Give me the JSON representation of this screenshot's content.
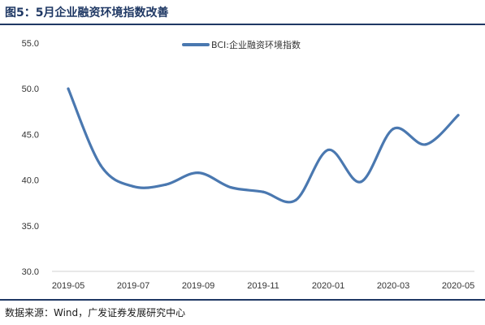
{
  "figure": {
    "title": "图5：5月企业融资环境指数改善",
    "source": "数据来源：Wind，广发证券发展研究中心"
  },
  "colors": {
    "series": "#4a78b0",
    "accent": "#1f3864"
  },
  "chart_data": {
    "type": "line",
    "title": "",
    "xlabel": "",
    "ylabel": "",
    "ylim": [
      30.0,
      55.0
    ],
    "yticks": [
      "30.0",
      "35.0",
      "40.0",
      "45.0",
      "50.0",
      "55.0"
    ],
    "xtick_labels": [
      "2019-05",
      "2019-07",
      "2019-09",
      "2019-11",
      "2020-01",
      "2020-03",
      "2020-05"
    ],
    "x": [
      "2019-05",
      "2019-06",
      "2019-07",
      "2019-08",
      "2019-09",
      "2019-10",
      "2019-11",
      "2019-12",
      "2020-01",
      "2020-02",
      "2020-03",
      "2020-04",
      "2020-05"
    ],
    "grid": false,
    "legend": "top-center",
    "series": [
      {
        "name": "BCI:企业融资环境指数",
        "values": [
          50.0,
          41.6,
          39.3,
          39.5,
          40.8,
          39.2,
          38.7,
          37.8,
          43.3,
          39.8,
          45.6,
          43.9,
          47.1
        ]
      }
    ]
  }
}
